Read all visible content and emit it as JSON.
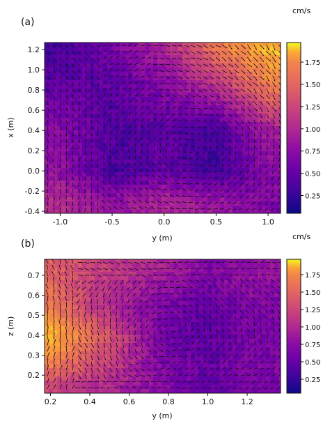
{
  "figure": {
    "panels": [
      {
        "label": "(a)",
        "chart_type": "quiver over heatmap",
        "xlabel": "y (m)",
        "ylabel": "x (m)",
        "xlim": [
          -1.15,
          1.12
        ],
        "ylim": [
          -0.42,
          1.27
        ],
        "xticks": [
          "-1.0",
          "-0.5",
          "0.0",
          "0.5",
          "1.0"
        ],
        "xtick_values": [
          -1.0,
          -0.5,
          0.0,
          0.5,
          1.0
        ],
        "yticks": [
          "-0.4",
          "-0.2",
          "0.0",
          "0.2",
          "0.4",
          "0.6",
          "0.8",
          "1.0",
          "1.2"
        ],
        "ytick_values": [
          -0.4,
          -0.2,
          0.0,
          0.2,
          0.4,
          0.6,
          0.8,
          1.0,
          1.2
        ],
        "colorbar": {
          "unit": "cm/s",
          "range": [
            0.05,
            1.97
          ],
          "ticks": [
            "0.25",
            "0.50",
            "0.75",
            "1.00",
            "1.25",
            "1.50",
            "1.75"
          ],
          "tick_values": [
            0.25,
            0.5,
            0.75,
            1.0,
            1.25,
            1.5,
            1.75
          ]
        }
      },
      {
        "label": "(b)",
        "chart_type": "quiver over heatmap",
        "xlabel": "y (m)",
        "ylabel": "z (m)",
        "xlim": [
          0.17,
          1.37
        ],
        "ylim": [
          0.11,
          0.78
        ],
        "xticks": [
          "0.2",
          "0.4",
          "0.6",
          "0.8",
          "1.0",
          "1.2"
        ],
        "xtick_values": [
          0.2,
          0.4,
          0.6,
          0.8,
          1.0,
          1.2
        ],
        "yticks": [
          "0.2",
          "0.3",
          "0.4",
          "0.5",
          "0.6",
          "0.7"
        ],
        "ytick_values": [
          0.2,
          0.3,
          0.4,
          0.5,
          0.6,
          0.7
        ],
        "colorbar": {
          "unit": "cm/s",
          "range": [
            0.05,
            1.97
          ],
          "ticks": [
            "0.25",
            "0.50",
            "0.75",
            "1.00",
            "1.25",
            "1.50",
            "1.75"
          ],
          "tick_values": [
            0.25,
            0.5,
            0.75,
            1.0,
            1.25,
            1.5,
            1.75
          ]
        }
      }
    ]
  },
  "chart_data": [
    {
      "type": "heatmap",
      "xlabel": "y (m)",
      "ylabel": "x (m)",
      "xlim": [
        -1.15,
        1.12
      ],
      "ylim": [
        -0.42,
        1.27
      ],
      "value_unit": "cm/s",
      "value_range": [
        0.05,
        1.97
      ],
      "colormap": "plasma",
      "quiver_overlay": true,
      "speed_field_samples": {
        "x": [
          -1.0,
          -0.5,
          0.0,
          0.5,
          1.0
        ],
        "y": [
          1.2,
          0.8,
          0.4,
          0.0,
          -0.3
        ],
        "values": [
          [
            0.3,
            0.55,
            0.85,
            1.45,
            1.8
          ],
          [
            0.45,
            0.4,
            0.6,
            0.9,
            1.45
          ],
          [
            0.65,
            0.35,
            0.4,
            0.3,
            0.8
          ],
          [
            0.7,
            0.3,
            0.45,
            0.25,
            0.65
          ],
          [
            0.9,
            0.7,
            0.85,
            0.75,
            0.6
          ]
        ]
      }
    },
    {
      "type": "heatmap",
      "xlabel": "y (m)",
      "ylabel": "z (m)",
      "xlim": [
        0.17,
        1.37
      ],
      "ylim": [
        0.11,
        0.78
      ],
      "value_unit": "cm/s",
      "value_range": [
        0.05,
        1.97
      ],
      "colormap": "plasma",
      "quiver_overlay": true,
      "speed_field_samples": {
        "x": [
          0.2,
          0.4,
          0.6,
          0.8,
          1.0,
          1.2
        ],
        "y": [
          0.7,
          0.55,
          0.4,
          0.25,
          0.15
        ],
        "values": [
          [
            1.3,
            1.1,
            0.95,
            0.8,
            0.6,
            0.7
          ],
          [
            1.5,
            1.05,
            0.75,
            0.55,
            0.45,
            0.6
          ],
          [
            1.85,
            1.4,
            0.95,
            0.5,
            0.4,
            0.55
          ],
          [
            1.5,
            1.2,
            0.9,
            0.55,
            0.45,
            0.6
          ],
          [
            1.1,
            0.95,
            0.8,
            0.6,
            0.45,
            0.55
          ]
        ]
      }
    }
  ]
}
